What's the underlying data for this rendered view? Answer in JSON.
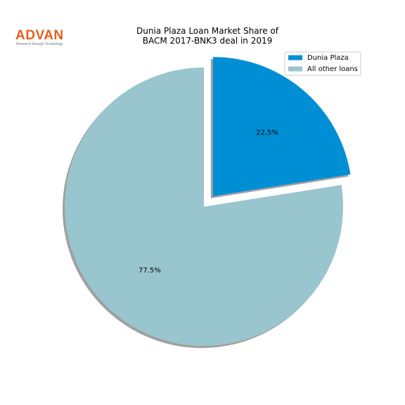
{
  "logo": {
    "name": "ADVAN",
    "tagline": "Research through Technology"
  },
  "chart_data": {
    "type": "pie",
    "title": "Dunia Plaza Loan Market Share of\nBACM 2017-BNK3 deal in 2019",
    "categories": [
      "Dunia Plaza",
      "All other loans"
    ],
    "values": [
      22.5,
      77.5
    ],
    "value_labels": [
      "22.5%",
      "77.5%"
    ],
    "colors": [
      "#008fd5",
      "#99c5ce"
    ],
    "explode": [
      0.1,
      0
    ],
    "shadow": true,
    "legend": "upper right"
  }
}
